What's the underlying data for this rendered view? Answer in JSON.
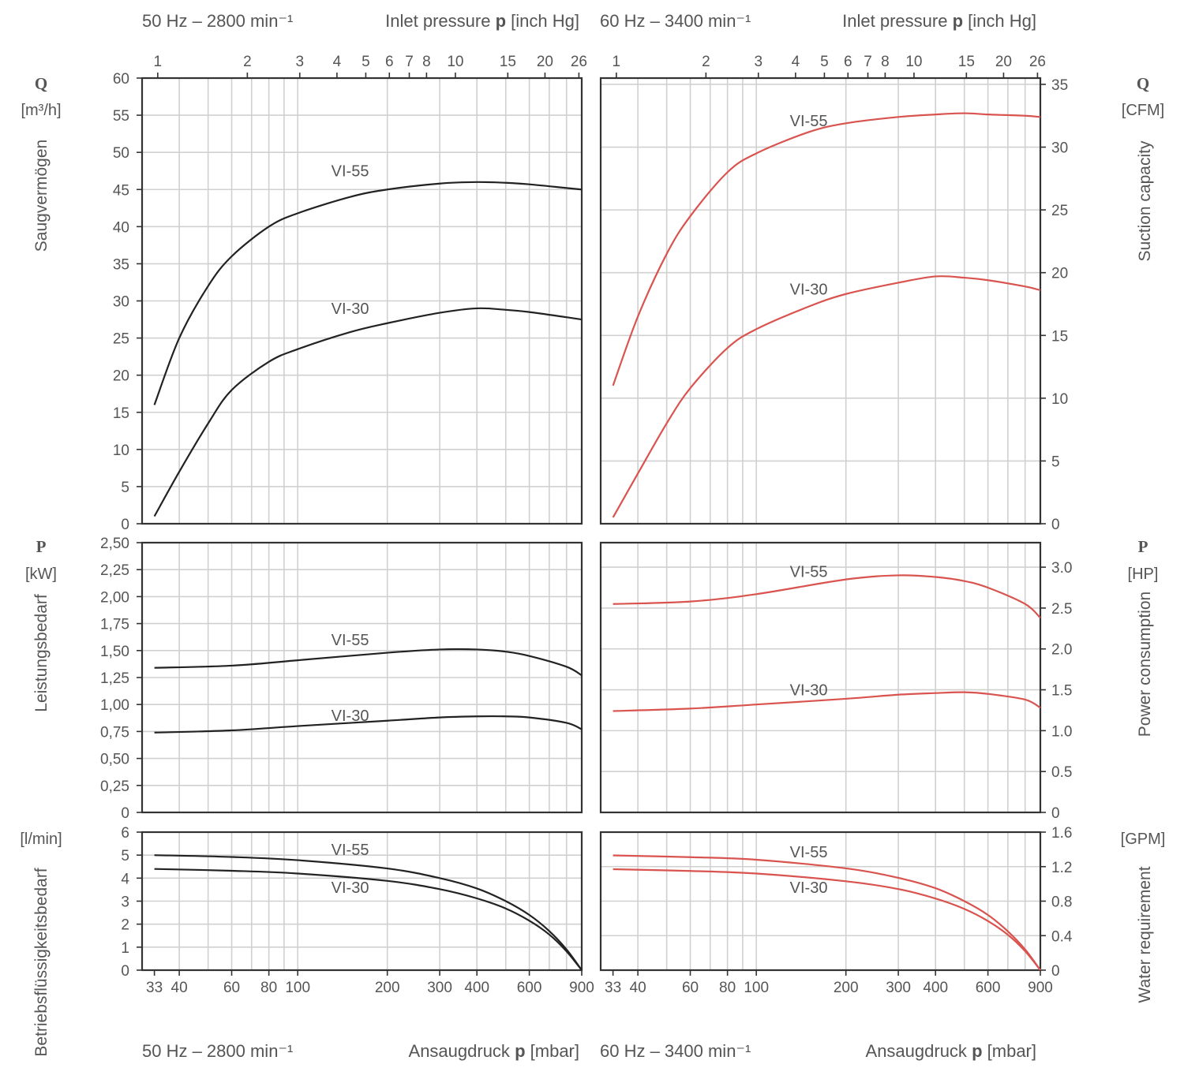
{
  "headers": {
    "left_top": "50 Hz – 2800 min⁻¹",
    "left_top_axis": "Inlet pressure",
    "right_top": "60 Hz – 3400 min⁻¹",
    "right_top_axis": "Inlet pressure",
    "top_axis_symbol": "p",
    "top_axis_unit": "[inch Hg]",
    "left_bottom": "50 Hz – 2800 min⁻¹",
    "left_bottom_axis": "Ansaugdruck",
    "right_bottom": "60 Hz – 3400 min⁻¹",
    "right_bottom_axis": "Ansaugdruck",
    "bottom_axis_symbol": "p",
    "bottom_axis_unit": "[mbar]"
  },
  "left_labels": {
    "q_symbol": "Q",
    "q_unit": "[m³/h]",
    "q_title": "Saugvermögen",
    "p_symbol": "P",
    "p_unit": "[kW]",
    "p_title": "Leistungsbedarf",
    "w_unit": "[l/min]",
    "w_title": "Betriebsflüssigkeitsbedarf"
  },
  "right_labels": {
    "q_symbol": "Q",
    "q_unit": "[CFM]",
    "q_title": "Suction capacity",
    "p_symbol": "P",
    "p_unit": "[HP]",
    "p_title": "Power consumption",
    "w_unit": "[GPM]",
    "w_title": "Water requirement"
  },
  "colors": {
    "left_curves": "#222222",
    "right_curves": "#d9534f"
  },
  "chart_data": {
    "type": "line",
    "x_scale": "log",
    "xlim": [
      30,
      900
    ],
    "x_ticks_mbar": [
      33,
      40,
      60,
      80,
      100,
      200,
      300,
      400,
      600,
      900
    ],
    "x_tick_labels_mbar": [
      "33",
      "40",
      "60",
      "80",
      "100",
      "200",
      "300",
      "400",
      "600",
      "900"
    ],
    "x_ticks_inhg": [
      1,
      2,
      3,
      4,
      5,
      6,
      7,
      8,
      10,
      15,
      20,
      26
    ],
    "x_tick_labels_inhg": [
      "1",
      "2",
      "3",
      "4",
      "5",
      "6",
      "7",
      "8",
      "10",
      "15",
      "20",
      "26"
    ],
    "panels": {
      "left": {
        "suction": {
          "ylim": [
            0,
            60
          ],
          "y_ticks": [
            0,
            5,
            10,
            15,
            20,
            25,
            30,
            35,
            40,
            45,
            50,
            55,
            60
          ],
          "y_tick_labels": [
            "0",
            "5",
            "10",
            "15",
            "20",
            "25",
            "30",
            "35",
            "40",
            "45",
            "50",
            "55",
            "60"
          ],
          "series": [
            {
              "name": "VI-55",
              "x": [
                33,
                40,
                50,
                60,
                80,
                100,
                150,
                200,
                300,
                400,
                500,
                600,
                800,
                900
              ],
              "y": [
                16,
                25,
                32,
                36,
                40,
                41.8,
                44,
                45,
                45.8,
                46,
                45.9,
                45.7,
                45.2,
                45
              ]
            },
            {
              "name": "VI-30",
              "x": [
                33,
                40,
                50,
                60,
                80,
                100,
                150,
                200,
                300,
                400,
                500,
                600,
                800,
                900
              ],
              "y": [
                1,
                7,
                13.5,
                18,
                21.8,
                23.5,
                25.8,
                27,
                28.4,
                29,
                28.8,
                28.5,
                27.8,
                27.5
              ]
            }
          ],
          "labels": [
            {
              "name": "VI-55",
              "x": 150,
              "y": 47.5
            },
            {
              "name": "VI-30",
              "x": 150,
              "y": 29
            }
          ]
        },
        "power": {
          "ylim": [
            0,
            2.5
          ],
          "y_ticks": [
            0,
            0.25,
            0.5,
            0.75,
            1.0,
            1.25,
            1.5,
            1.75,
            2.0,
            2.25,
            2.5
          ],
          "y_tick_labels": [
            "0",
            "0,25",
            "0,50",
            "0,75",
            "1,00",
            "1,25",
            "1,50",
            "1,75",
            "2,00",
            "2,25",
            "2,50"
          ],
          "series": [
            {
              "name": "VI-55",
              "x": [
                33,
                60,
                100,
                200,
                300,
                400,
                500,
                600,
                800,
                900
              ],
              "y": [
                1.34,
                1.36,
                1.41,
                1.48,
                1.51,
                1.51,
                1.49,
                1.45,
                1.35,
                1.27
              ]
            },
            {
              "name": "VI-30",
              "x": [
                33,
                60,
                100,
                200,
                300,
                400,
                500,
                600,
                800,
                900
              ],
              "y": [
                0.74,
                0.76,
                0.8,
                0.85,
                0.88,
                0.89,
                0.89,
                0.88,
                0.83,
                0.77
              ]
            }
          ],
          "labels": [
            {
              "name": "VI-55",
              "x": 150,
              "y": 1.6
            },
            {
              "name": "VI-30",
              "x": 150,
              "y": 0.9
            }
          ]
        },
        "water": {
          "ylim": [
            0,
            6
          ],
          "y_ticks": [
            0,
            1,
            2,
            3,
            4,
            5,
            6
          ],
          "y_tick_labels": [
            "0",
            "1",
            "2",
            "3",
            "4",
            "5",
            "6"
          ],
          "series": [
            {
              "name": "VI-55",
              "x": [
                33,
                60,
                100,
                200,
                300,
                400,
                500,
                600,
                700,
                800,
                900
              ],
              "y": [
                5.0,
                4.92,
                4.78,
                4.42,
                4.0,
                3.55,
                3.0,
                2.4,
                1.7,
                0.9,
                0
              ]
            },
            {
              "name": "VI-30",
              "x": [
                33,
                60,
                100,
                200,
                300,
                400,
                500,
                600,
                700,
                800,
                900
              ],
              "y": [
                4.4,
                4.32,
                4.2,
                3.88,
                3.52,
                3.12,
                2.68,
                2.15,
                1.55,
                0.82,
                0
              ]
            }
          ],
          "labels": [
            {
              "name": "VI-55",
              "x": 150,
              "y": 5.25
            },
            {
              "name": "VI-30",
              "x": 150,
              "y": 3.6
            }
          ]
        }
      },
      "right": {
        "suction": {
          "ylim": [
            0,
            35.5
          ],
          "y_ticks": [
            0,
            5,
            10,
            15,
            20,
            25,
            30,
            35
          ],
          "y_tick_labels": [
            "0",
            "5",
            "10",
            "15",
            "20",
            "25",
            "30",
            "35"
          ],
          "series": [
            {
              "name": "VI-55",
              "x": [
                33,
                40,
                50,
                60,
                80,
                100,
                150,
                200,
                300,
                400,
                500,
                600,
                800,
                900
              ],
              "y": [
                11,
                16.5,
                21.5,
                24.5,
                28,
                29.5,
                31.2,
                31.9,
                32.4,
                32.6,
                32.7,
                32.6,
                32.5,
                32.4
              ]
            },
            {
              "name": "VI-30",
              "x": [
                33,
                40,
                50,
                60,
                80,
                100,
                150,
                200,
                300,
                400,
                500,
                600,
                800,
                900
              ],
              "y": [
                0.5,
                4,
                8,
                10.8,
                14,
                15.5,
                17.3,
                18.3,
                19.2,
                19.7,
                19.6,
                19.4,
                18.9,
                18.6
              ]
            }
          ],
          "labels": [
            {
              "name": "VI-55",
              "x": 150,
              "y": 32.1
            },
            {
              "name": "VI-30",
              "x": 150,
              "y": 18.7
            }
          ]
        },
        "power": {
          "ylim": [
            0,
            3.3
          ],
          "y_ticks": [
            0,
            0.5,
            1.0,
            1.5,
            2.0,
            2.5,
            3.0
          ],
          "y_tick_labels": [
            "0",
            "0.5",
            "1.0",
            "1.5",
            "2.0",
            "2.5",
            "3.0"
          ],
          "series": [
            {
              "name": "VI-55",
              "x": [
                33,
                60,
                100,
                200,
                300,
                400,
                500,
                600,
                800,
                900
              ],
              "y": [
                2.55,
                2.58,
                2.67,
                2.85,
                2.9,
                2.88,
                2.83,
                2.75,
                2.55,
                2.38
              ]
            },
            {
              "name": "VI-30",
              "x": [
                33,
                60,
                100,
                200,
                300,
                400,
                500,
                600,
                800,
                900
              ],
              "y": [
                1.24,
                1.27,
                1.32,
                1.39,
                1.44,
                1.46,
                1.47,
                1.45,
                1.38,
                1.28
              ]
            }
          ],
          "labels": [
            {
              "name": "VI-55",
              "x": 150,
              "y": 2.95
            },
            {
              "name": "VI-30",
              "x": 150,
              "y": 1.5
            }
          ]
        },
        "water": {
          "ylim": [
            0,
            1.6
          ],
          "y_ticks": [
            0,
            0.4,
            0.8,
            1.2,
            1.6
          ],
          "y_tick_labels": [
            "0",
            "0.4",
            "0.8",
            "1.2",
            "1.6"
          ],
          "series": [
            {
              "name": "VI-55",
              "x": [
                33,
                60,
                100,
                200,
                300,
                400,
                500,
                600,
                700,
                800,
                900
              ],
              "y": [
                1.33,
                1.31,
                1.28,
                1.18,
                1.07,
                0.95,
                0.8,
                0.64,
                0.45,
                0.24,
                0
              ]
            },
            {
              "name": "VI-30",
              "x": [
                33,
                60,
                100,
                200,
                300,
                400,
                500,
                600,
                700,
                800,
                900
              ],
              "y": [
                1.17,
                1.15,
                1.12,
                1.03,
                0.94,
                0.83,
                0.71,
                0.57,
                0.41,
                0.22,
                0
              ]
            }
          ],
          "labels": [
            {
              "name": "VI-55",
              "x": 150,
              "y": 1.37
            },
            {
              "name": "VI-30",
              "x": 150,
              "y": 0.96
            }
          ]
        }
      }
    }
  }
}
